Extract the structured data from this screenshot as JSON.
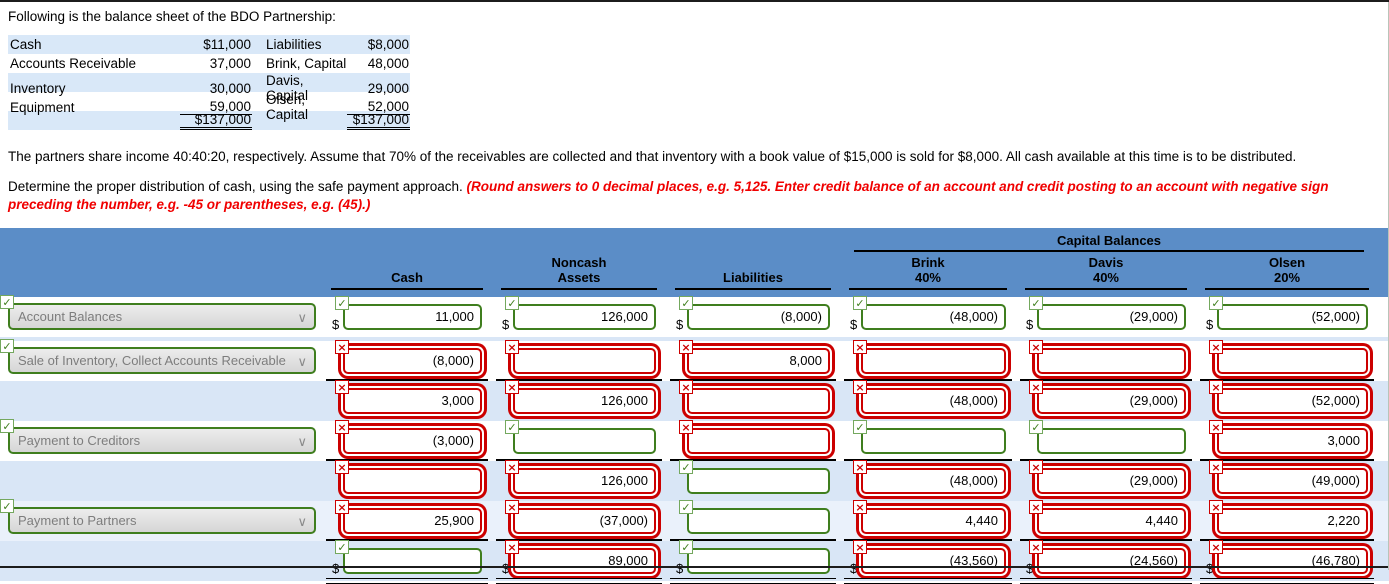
{
  "page": {
    "intro": "Following is the balance sheet of the BDO Partnership:",
    "paragraph1": "The partners share income 40:40:20, respectively. Assume that 70% of the receivables are collected and that inventory with a book value of $15,000 is sold for $8,000. All cash available at this time is to be distributed.",
    "paragraph2_normal": "Determine the proper distribution of cash, using the safe payment approach. ",
    "paragraph2_red": "(Round answers to 0 decimal places, e.g. 5,125. Enter credit balance of an account and credit posting to an account with negative sign preceding the number, e.g. -45 or parentheses, e.g. (45).)"
  },
  "icons": {
    "check": "✓",
    "x": "×",
    "chevron": "∨"
  },
  "colors": {
    "header_blue": "#5b8dc7",
    "row_blue": "#d9e6f6",
    "correct_green": "#3f7e1e",
    "incorrect_red": "#cc0000",
    "note_red": "#f00000"
  },
  "balance_sheet": {
    "rows": [
      {
        "left_label": "Cash",
        "left_value": "$11,000",
        "right_label": "Liabilities",
        "right_value": "$8,000",
        "underline": "none"
      },
      {
        "left_label": "Accounts Receivable",
        "left_value": "37,000",
        "right_label": "Brink, Capital",
        "right_value": "48,000",
        "underline": "none"
      },
      {
        "left_label": "Inventory",
        "left_value": "30,000",
        "right_label": "Davis, Capital",
        "right_value": "29,000",
        "underline": "none"
      },
      {
        "left_label": "Equipment",
        "left_value": "59,000",
        "right_label": "Olsen, Capital",
        "right_value": "52,000",
        "underline": "single"
      },
      {
        "left_label": "",
        "left_value": "$137,000",
        "right_label": "",
        "right_value": "$137,000",
        "underline": "double"
      }
    ]
  },
  "worksheet": {
    "group_header": "Capital Balances",
    "columns": [
      "Cash",
      "Noncash\nAssets",
      "Liabilities",
      "Brink\n40%",
      "Davis\n40%",
      "Olsen\n20%"
    ],
    "column_keys": [
      "cash",
      "noncash-assets",
      "liabilities",
      "brink",
      "davis",
      "olsen"
    ],
    "rows": [
      {
        "label": {
          "text": "Account Balances",
          "status": "correct"
        },
        "dollar": true,
        "underline": "none",
        "cells": [
          {
            "value": "11,000",
            "status": "correct"
          },
          {
            "value": "126,000",
            "status": "correct"
          },
          {
            "value": "(8,000)",
            "status": "correct"
          },
          {
            "value": "(48,000)",
            "status": "correct"
          },
          {
            "value": "(29,000)",
            "status": "correct"
          },
          {
            "value": "(52,000)",
            "status": "correct"
          }
        ]
      },
      {
        "label": {
          "text": "Sale of Inventory, Collect Accounts Receivable",
          "status": "correct"
        },
        "dollar": false,
        "underline": "single",
        "cells": [
          {
            "value": "(8,000)",
            "status": "incorrect"
          },
          {
            "value": "",
            "status": "incorrect"
          },
          {
            "value": "8,000",
            "status": "incorrect"
          },
          {
            "value": "",
            "status": "incorrect"
          },
          {
            "value": "",
            "status": "incorrect"
          },
          {
            "value": "",
            "status": "incorrect"
          }
        ]
      },
      {
        "label": null,
        "dollar": false,
        "underline": "none",
        "cells": [
          {
            "value": "3,000",
            "status": "incorrect"
          },
          {
            "value": "126,000",
            "status": "incorrect"
          },
          {
            "value": "",
            "status": "incorrect"
          },
          {
            "value": "(48,000)",
            "status": "incorrect"
          },
          {
            "value": "(29,000)",
            "status": "incorrect"
          },
          {
            "value": "(52,000)",
            "status": "incorrect"
          }
        ]
      },
      {
        "label": {
          "text": "Payment to Creditors",
          "status": "correct"
        },
        "dollar": false,
        "underline": "single",
        "cells": [
          {
            "value": "(3,000)",
            "status": "incorrect"
          },
          {
            "value": "",
            "status": "correct"
          },
          {
            "value": "",
            "status": "incorrect"
          },
          {
            "value": "",
            "status": "correct"
          },
          {
            "value": "",
            "status": "correct"
          },
          {
            "value": "3,000",
            "status": "incorrect"
          }
        ]
      },
      {
        "label": null,
        "dollar": false,
        "underline": "none",
        "cells": [
          {
            "value": "",
            "status": "incorrect"
          },
          {
            "value": "126,000",
            "status": "incorrect"
          },
          {
            "value": "",
            "status": "correct"
          },
          {
            "value": "(48,000)",
            "status": "incorrect"
          },
          {
            "value": "(29,000)",
            "status": "incorrect"
          },
          {
            "value": "(49,000)",
            "status": "incorrect"
          }
        ]
      },
      {
        "label": {
          "text": "Payment to Partners",
          "status": "correct"
        },
        "dollar": false,
        "underline": "single",
        "cells": [
          {
            "value": "25,900",
            "status": "incorrect"
          },
          {
            "value": "(37,000)",
            "status": "incorrect"
          },
          {
            "value": "",
            "status": "correct"
          },
          {
            "value": "4,440",
            "status": "incorrect"
          },
          {
            "value": "4,440",
            "status": "incorrect"
          },
          {
            "value": "2,220",
            "status": "incorrect"
          }
        ]
      },
      {
        "label": null,
        "dollar": true,
        "underline": "double",
        "cells": [
          {
            "value": "",
            "status": "correct"
          },
          {
            "value": "89,000",
            "status": "incorrect"
          },
          {
            "value": "",
            "status": "correct"
          },
          {
            "value": "(43,560)",
            "status": "incorrect"
          },
          {
            "value": "(24,560)",
            "status": "incorrect"
          },
          {
            "value": "(46,780)",
            "status": "incorrect"
          }
        ]
      }
    ]
  }
}
